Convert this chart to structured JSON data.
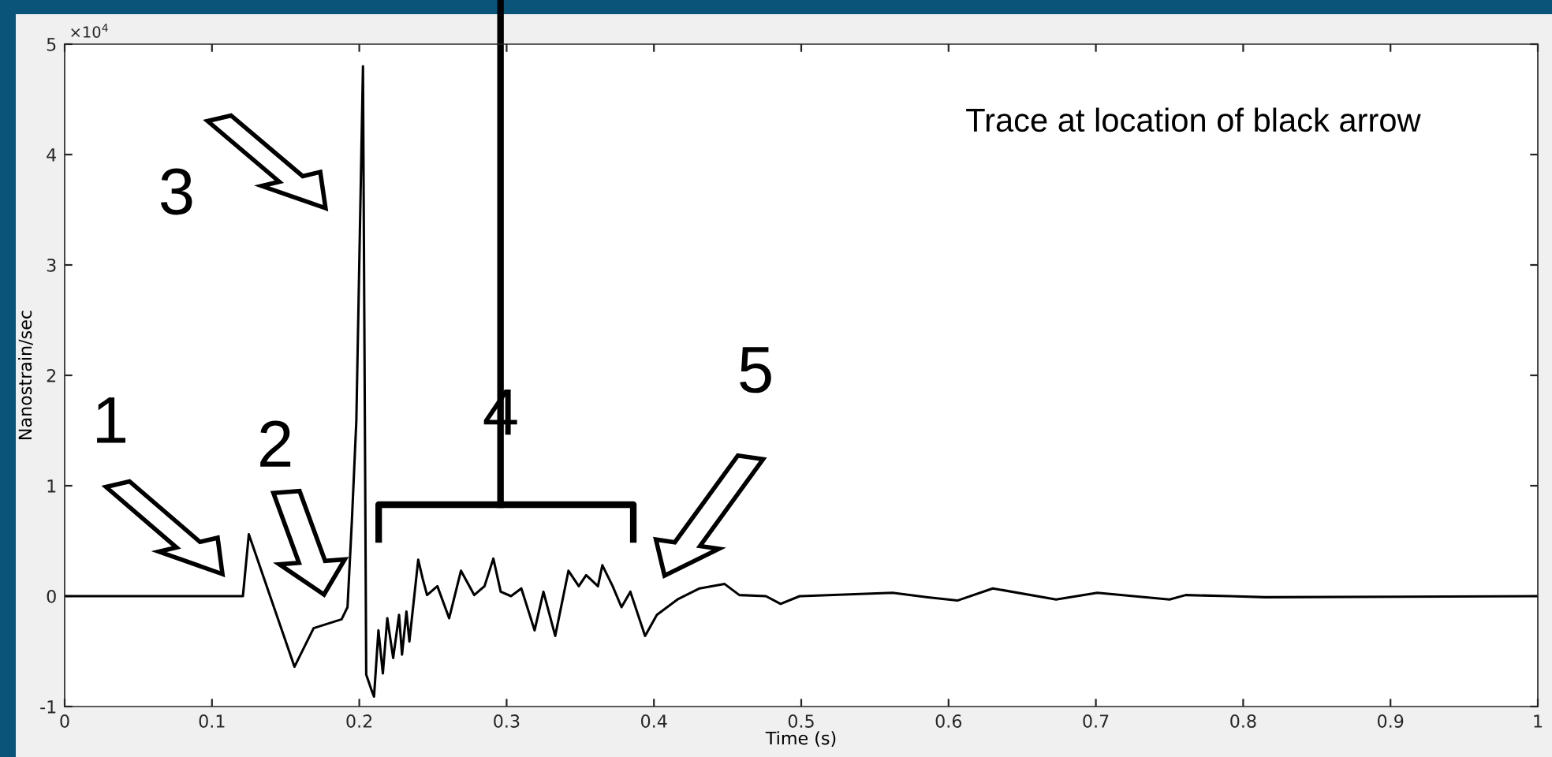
{
  "chart_data": {
    "type": "line",
    "xlabel": "Time (s)",
    "ylabel": "Nanostrain/sec",
    "annotations": [
      "1",
      "2",
      "3",
      "4",
      "5",
      "Trace at location of black arrow",
      "×10$^{4}$"
    ],
    "xlim": [
      0,
      1
    ],
    "ylim": [
      -1,
      5
    ],
    "xticks": [
      0,
      0.1,
      0.2,
      0.3,
      0.4,
      0.5,
      0.6,
      0.7,
      0.8,
      0.9,
      1
    ],
    "yticks": [
      -1,
      0,
      1,
      2,
      3,
      4,
      5
    ],
    "grid": false,
    "legend": false,
    "marker": "none",
    "line_style": "solid",
    "series": [
      {
        "color": "#000000",
        "x": [
          0,
          0.121,
          0.125,
          0.156,
          0.169,
          0.188,
          0.192,
          0.195,
          0.198,
          0.2025,
          0.2047,
          0.208,
          0.21,
          0.213,
          0.216,
          0.219,
          0.223,
          0.227,
          0.229,
          0.232,
          0.234,
          0.24,
          0.243,
          0.246,
          0.253,
          0.261,
          0.269,
          0.278,
          0.285,
          0.291,
          0.296,
          0.303,
          0.31,
          0.319,
          0.325,
          0.333,
          0.342,
          0.349,
          0.354,
          0.362,
          0.365,
          0.372,
          0.378,
          0.384,
          0.394,
          0.402,
          0.416,
          0.431,
          0.448,
          0.458,
          0.476,
          0.486,
          0.499,
          0.562,
          0.586,
          0.606,
          0.63,
          0.673,
          0.701,
          0.75,
          0.761,
          0.791,
          0.815,
          1
        ],
        "values": [
          0,
          0,
          0.56,
          -0.64,
          -0.29,
          -0.21,
          -0.1,
          0.69,
          1.59,
          4.8,
          -0.71,
          -0.84,
          -0.91,
          -0.31,
          -0.7,
          -0.2,
          -0.56,
          -0.17,
          -0.53,
          -0.14,
          -0.41,
          0.33,
          0.16,
          0.01,
          0.09,
          -0.2,
          0.23,
          0.01,
          0.09,
          0.34,
          0.04,
          0,
          0.07,
          -0.31,
          0.04,
          -0.36,
          0.23,
          0.09,
          0.19,
          0.09,
          0.28,
          0.09,
          -0.1,
          0.04,
          -0.36,
          -0.17,
          -0.03,
          0.07,
          0.11,
          0.01,
          0,
          -0.07,
          0,
          0.03,
          -0.01,
          -0.04,
          0.07,
          -0.03,
          0.03,
          -0.03,
          0.01,
          0,
          -0.01,
          0
        ]
      }
    ]
  }
}
